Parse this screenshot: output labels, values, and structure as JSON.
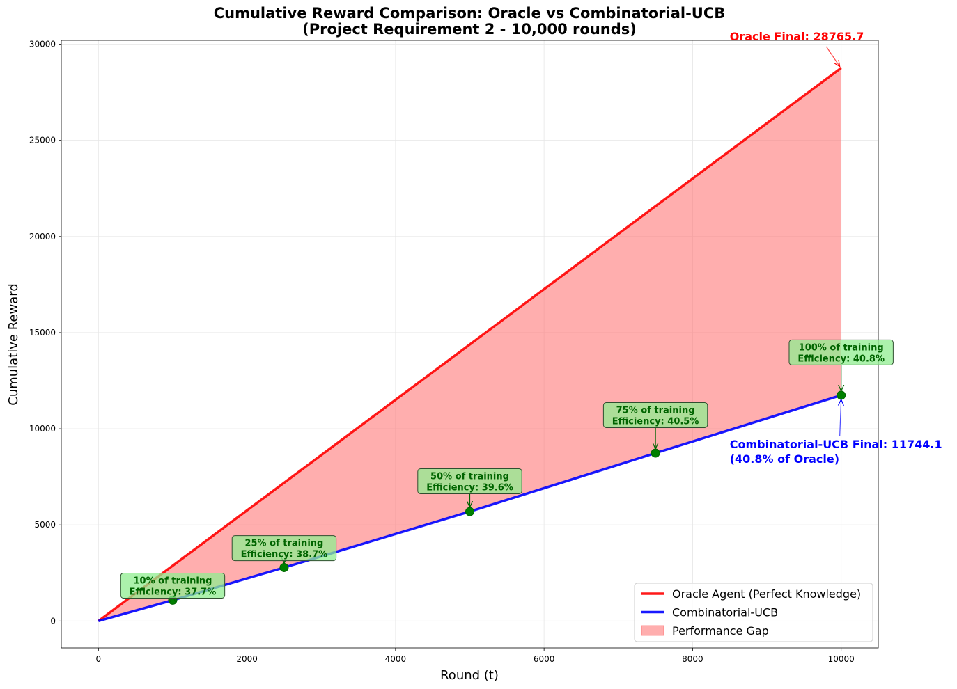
{
  "chart_data": {
    "type": "line",
    "title_line1": "Cumulative Reward Comparison: Oracle vs Combinatorial-UCB",
    "title_line2": "(Project Requirement 2 - 10,000 rounds)",
    "xlabel": "Round (t)",
    "ylabel": "Cumulative Reward",
    "xlim": [
      -500,
      10500
    ],
    "ylim": [
      -1400,
      30200
    ],
    "xticks": [
      0,
      2000,
      4000,
      6000,
      8000,
      10000
    ],
    "yticks": [
      0,
      5000,
      10000,
      15000,
      20000,
      25000,
      30000
    ],
    "grid": true,
    "legend_position": "lower-right",
    "series": [
      {
        "name": "Oracle Agent (Perfect Knowledge)",
        "color": "#ff0000",
        "x": [
          0,
          10000
        ],
        "y": [
          0,
          28765.7
        ]
      },
      {
        "name": "Combinatorial-UCB",
        "color": "#0000ff",
        "x": [
          0,
          1000,
          2500,
          5000,
          7500,
          10000
        ],
        "y": [
          0,
          1084,
          2782,
          5692,
          8735,
          11744.1
        ]
      }
    ],
    "fill": {
      "name": "Performance Gap",
      "color": "#ff6b6b"
    },
    "milestones": [
      {
        "x": 1000,
        "y": 1084,
        "label1": "10% of training",
        "label2": "Efficiency: 37.7%"
      },
      {
        "x": 2500,
        "y": 2782,
        "label1": "25% of training",
        "label2": "Efficiency: 38.7%"
      },
      {
        "x": 5000,
        "y": 5692,
        "label1": "50% of training",
        "label2": "Efficiency: 39.6%"
      },
      {
        "x": 7500,
        "y": 8735,
        "label1": "75% of training",
        "label2": "Efficiency: 40.5%"
      },
      {
        "x": 10000,
        "y": 11744.1,
        "label1": "100% of training",
        "label2": "Efficiency: 40.8%"
      }
    ],
    "annotations": {
      "oracle_final": "Oracle Final: 28765.7",
      "ucb_final_line1": "Combinatorial-UCB Final: 11744.1",
      "ucb_final_line2": "(40.8% of Oracle)"
    }
  }
}
